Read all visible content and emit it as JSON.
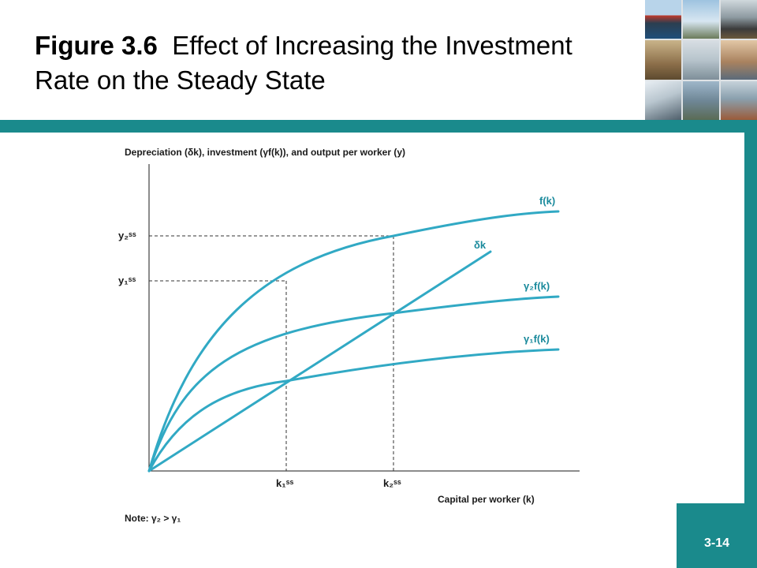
{
  "slide": {
    "title_bold": "Figure 3.6",
    "title_rest": "Effect of Increasing the Investment Rate on the Steady State",
    "number": "3-14",
    "colors": {
      "accent": "#1a8a8c",
      "curve": "#31a9c4"
    }
  },
  "collage": {
    "icons": [
      "ship-icon",
      "crane-icon",
      "train-icon",
      "animals-icon",
      "car-icon",
      "people-icon",
      "bullet-train-icon",
      "bridge-icon",
      "rider-icon"
    ]
  },
  "diagram": {
    "y_axis_label": "Depreciation (δk), investment (γf(k)), and output per worker (y)",
    "x_axis_label": "Capital per worker (k)",
    "note": "Note: γ₂ > γ₁",
    "curves": {
      "output": "f(k)",
      "depreciation": "δk",
      "investment_high": "γ₂f(k)",
      "investment_low": "γ₁f(k)"
    },
    "y_ticks": {
      "y2": "y₂ˢˢ",
      "y1": "y₁ˢˢ"
    },
    "x_ticks": {
      "k1": "k₁ˢˢ",
      "k2": "k₂ˢˢ"
    }
  }
}
